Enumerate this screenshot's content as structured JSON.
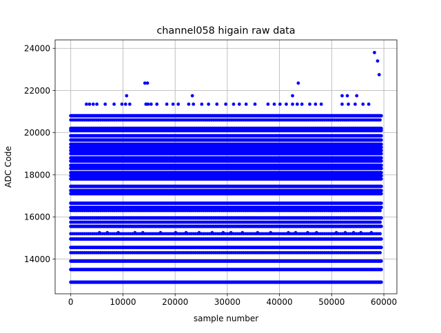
{
  "chart_data": {
    "type": "scatter",
    "title": "channel058 higain raw data",
    "xlabel": "sample number",
    "ylabel": "ADC Code",
    "xlim": [
      -3000,
      62500
    ],
    "ylim": [
      12350,
      24400
    ],
    "grid": true,
    "x_ticks": [
      0,
      10000,
      20000,
      30000,
      40000,
      50000,
      60000
    ],
    "x_tick_labels": [
      "0",
      "10000",
      "20000",
      "30000",
      "40000",
      "50000",
      "60000"
    ],
    "y_ticks": [
      14000,
      16000,
      18000,
      20000,
      22000,
      24000
    ],
    "y_tick_labels": [
      "14000",
      "16000",
      "18000",
      "20000",
      "22000",
      "24000"
    ],
    "marker_color": "#0000ff",
    "sample_range": [
      0,
      59500
    ],
    "dense_levels": [
      12900,
      13500,
      13900,
      14550,
      14950,
      15550,
      15950,
      16450,
      16650,
      17100,
      17250,
      17450,
      17800,
      17950,
      18100,
      18300,
      18450,
      18650,
      18800,
      19000,
      19150,
      19300,
      19450,
      19650,
      19850,
      20100,
      20200,
      20800
    ],
    "medium_levels": [
      14300,
      15200,
      15750,
      16300,
      20600
    ],
    "sparse_points": {
      "x": [
        3000,
        3600,
        4300,
        5000,
        6600,
        8300,
        9800,
        10500,
        11300,
        14400,
        14800,
        15400,
        16500,
        18400,
        19600,
        20600,
        22600,
        23500,
        25100,
        26400,
        28000,
        29700,
        31200,
        32300,
        33600,
        35300,
        37800,
        39000,
        40100,
        41300,
        42500,
        43400,
        44300,
        45800,
        46900,
        48000,
        52000,
        53200,
        54500,
        56000,
        57100,
        5500,
        7000,
        9100,
        12300,
        13800,
        17200,
        20100,
        22100,
        24600,
        27100,
        29200,
        30700,
        32900,
        35800,
        38300,
        41700,
        43100,
        45400,
        47100,
        50900,
        52600,
        54200,
        55600,
        57600
      ],
      "y": [
        21350,
        21350,
        21350,
        21350,
        21350,
        21350,
        21350,
        21350,
        21350,
        21350,
        21350,
        21350,
        21350,
        21350,
        21350,
        21350,
        21350,
        21350,
        21350,
        21350,
        21350,
        21350,
        21350,
        21350,
        21350,
        21350,
        21350,
        21350,
        21350,
        21350,
        21350,
        21350,
        21350,
        21350,
        21350,
        21350,
        21350,
        21350,
        21350,
        21350,
        21350,
        15250,
        15250,
        15250,
        15250,
        15250,
        15250,
        15250,
        15250,
        15250,
        15250,
        15250,
        15250,
        15250,
        15250,
        15250,
        15250,
        15250,
        15250,
        15250,
        15250,
        15250,
        15250,
        15250,
        15250
      ]
    },
    "outliers": {
      "x": [
        10700,
        14200,
        14700,
        23300,
        42500,
        43600,
        52000,
        53000,
        54800,
        58200,
        58800,
        59100
      ],
      "y": [
        21750,
        22350,
        22350,
        21750,
        21750,
        22350,
        21750,
        21750,
        21750,
        23800,
        23400,
        22750
      ]
    }
  }
}
